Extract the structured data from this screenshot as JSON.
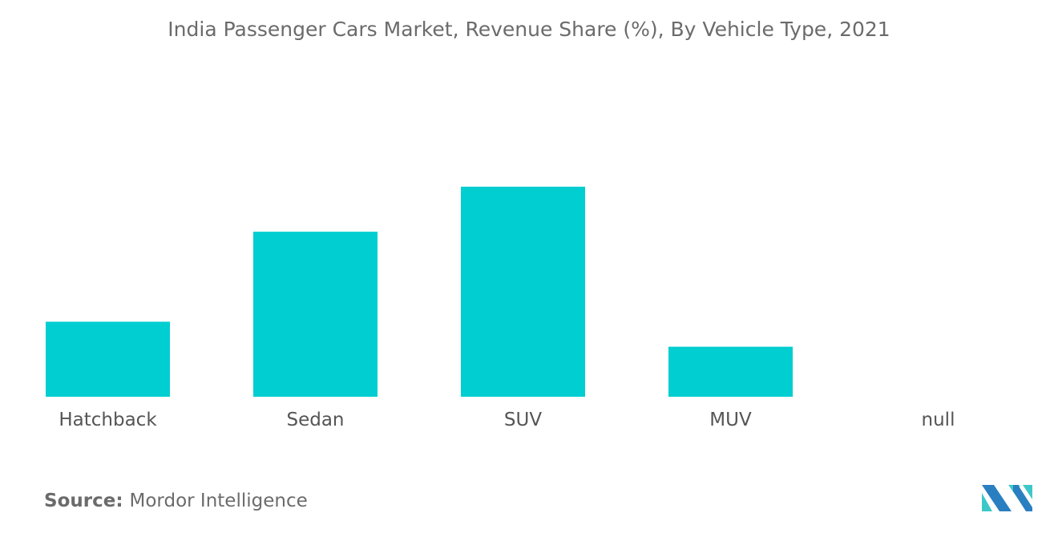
{
  "chart_data": {
    "type": "bar",
    "title": "India Passenger Cars Market, Revenue Share (%), By Vehicle Type, 2021",
    "categories": [
      "Hatchback",
      "Sedan",
      "SUV",
      "MUV",
      "null"
    ],
    "values": [
      15,
      33,
      42,
      10,
      null
    ],
    "xlabel": "",
    "ylabel": "",
    "ylim": [
      0,
      50
    ],
    "grid": false,
    "bar_color": "#00ced1"
  },
  "source": {
    "label": "Source:",
    "text": "Mordor Intelligence"
  },
  "logo": {
    "text": "Mordor Intelligence",
    "colors": [
      "#2a7fc1",
      "#3cc8c8"
    ]
  }
}
